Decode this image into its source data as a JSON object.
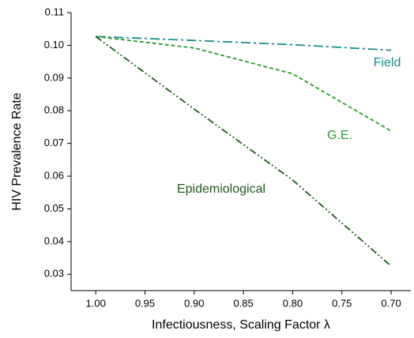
{
  "chart_data": {
    "type": "line",
    "x_label": "Infectiousness, Scaling Factor λ",
    "y_label": "HIV Prevalence Rate",
    "x": [
      1.0,
      0.9,
      0.8,
      0.7
    ],
    "series": [
      {
        "name": "Field",
        "color": "#1b8a8f",
        "dash": "12,4,3,4",
        "values": [
          0.1027,
          0.1015,
          0.1002,
          0.0985
        ]
      },
      {
        "name": "G.E.",
        "color": "#2a9a2a",
        "dash": "5,3",
        "values": [
          0.1027,
          0.0992,
          0.0913,
          0.0738
        ]
      },
      {
        "name": "Epidemiological",
        "color": "#1e5a1e",
        "dash": "9,3,2,3,2,3",
        "values": [
          0.1027,
          0.0805,
          0.0588,
          0.0325
        ]
      }
    ],
    "xlim": [
      1.025,
      0.68
    ],
    "xticks": [
      {
        "value": 1.0,
        "label": "1.00"
      },
      0.95,
      {
        "value": 0.9,
        "label": "0.90"
      },
      0.85,
      {
        "value": 0.8,
        "label": "0.80"
      },
      0.75,
      {
        "value": 0.7,
        "label": "0.70"
      }
    ],
    "ylim": [
      0.025,
      0.11
    ],
    "yticks": [
      0.03,
      0.04,
      0.05,
      0.06,
      0.07,
      0.08,
      0.09,
      {
        "value": 0.1,
        "label": "0.10"
      },
      0.11
    ]
  }
}
